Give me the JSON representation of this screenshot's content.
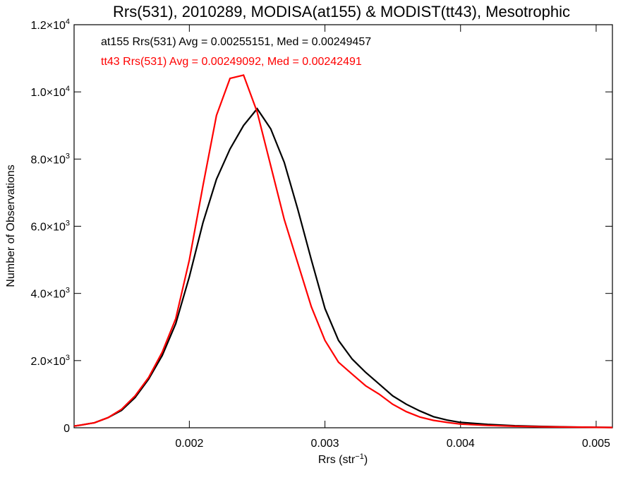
{
  "chart_data": {
    "type": "line",
    "title": "Rrs(531), 2010289, MODISA(at155) & MODIST(tt43), Mesotrophic",
    "xlabel": "Rrs (str",
    "xlabel_sup": "−1",
    "xlabel_end": ")",
    "ylabel": "Number of Observations",
    "xlim": [
      0.00115,
      0.00512
    ],
    "ylim": [
      0,
      12000
    ],
    "grid": false,
    "x_ticks": [
      {
        "value": 0.002,
        "label": "0.002"
      },
      {
        "value": 0.003,
        "label": "0.003"
      },
      {
        "value": 0.004,
        "label": "0.004"
      },
      {
        "value": 0.005,
        "label": "0.005"
      }
    ],
    "y_ticks": [
      {
        "value": 0,
        "mant": "0",
        "exp": ""
      },
      {
        "value": 2000,
        "mant": "2.0×10",
        "exp": "3"
      },
      {
        "value": 4000,
        "mant": "4.0×10",
        "exp": "3"
      },
      {
        "value": 6000,
        "mant": "6.0×10",
        "exp": "3"
      },
      {
        "value": 8000,
        "mant": "8.0×10",
        "exp": "3"
      },
      {
        "value": 10000,
        "mant": "1.0×10",
        "exp": "4"
      },
      {
        "value": 12000,
        "mant": "1.2×10",
        "exp": "4"
      }
    ],
    "annotations": [
      {
        "text": "at155 Rrs(531) Avg = 0.00255151, Med = 0.00249457",
        "color": "#000000"
      },
      {
        "text": "tt43 Rrs(531) Avg = 0.00249092, Med = 0.00242491",
        "color": "#ff0000"
      }
    ],
    "series": [
      {
        "color": "#000000",
        "x": [
          0.00115,
          0.0012,
          0.0013,
          0.0014,
          0.0015,
          0.0016,
          0.0017,
          0.0018,
          0.0019,
          0.002,
          0.0021,
          0.0022,
          0.0023,
          0.0024,
          0.0025,
          0.0026,
          0.0027,
          0.0028,
          0.0029,
          0.003,
          0.0031,
          0.0032,
          0.0033,
          0.0034,
          0.0035,
          0.0036,
          0.0037,
          0.0038,
          0.0039,
          0.004,
          0.0042,
          0.0044,
          0.0046,
          0.0048,
          0.005,
          0.00512
        ],
        "y": [
          50,
          80,
          150,
          300,
          520,
          900,
          1450,
          2150,
          3100,
          4500,
          6100,
          7400,
          8300,
          9000,
          9500,
          8900,
          7900,
          6500,
          5000,
          3550,
          2600,
          2050,
          1650,
          1300,
          950,
          700,
          500,
          330,
          230,
          160,
          100,
          60,
          40,
          25,
          15,
          10
        ]
      },
      {
        "color": "#ff0000",
        "x": [
          0.00115,
          0.0012,
          0.0013,
          0.0014,
          0.0015,
          0.0016,
          0.0017,
          0.0018,
          0.0019,
          0.002,
          0.0021,
          0.0022,
          0.0023,
          0.0024,
          0.0025,
          0.0026,
          0.0027,
          0.0028,
          0.0029,
          0.003,
          0.0031,
          0.0032,
          0.0033,
          0.0034,
          0.0035,
          0.0036,
          0.0037,
          0.0038,
          0.0039,
          0.004,
          0.0042,
          0.0044,
          0.0046,
          0.0048,
          0.005,
          0.00512
        ],
        "y": [
          50,
          80,
          150,
          300,
          550,
          950,
          1500,
          2250,
          3250,
          5000,
          7200,
          9300,
          10400,
          10500,
          9400,
          7800,
          6200,
          4900,
          3600,
          2600,
          1950,
          1600,
          1250,
          1000,
          700,
          480,
          320,
          220,
          160,
          110,
          70,
          45,
          30,
          20,
          12,
          8
        ]
      }
    ]
  }
}
